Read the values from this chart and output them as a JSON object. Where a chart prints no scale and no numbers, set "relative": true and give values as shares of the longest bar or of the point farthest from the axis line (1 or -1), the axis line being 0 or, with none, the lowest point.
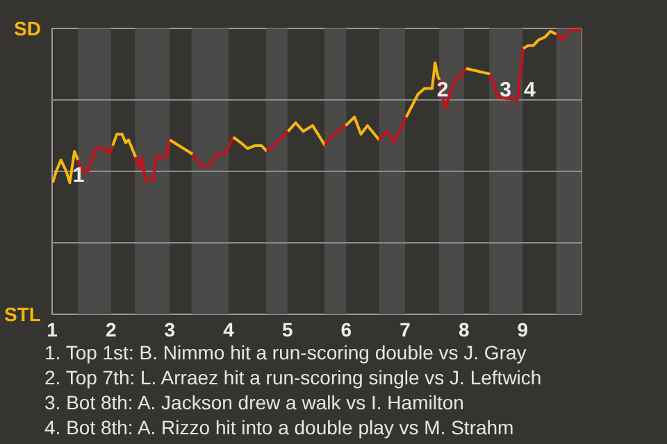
{
  "chart_data": {
    "type": "line",
    "relative": true,
    "xlim": [
      1,
      10
    ],
    "xticks": [
      1,
      2,
      3,
      4,
      5,
      6,
      7,
      8,
      9
    ],
    "tick_labels": "x",
    "series": [
      {
        "color": "#f5b70f",
        "x": [
          1.01,
          1.07,
          1.15,
          1.24,
          1.3,
          1.38,
          1.44
        ],
        "values": [
          0.46,
          0.5,
          0.54,
          0.5,
          0.46,
          0.57,
          0.54
        ]
      },
      {
        "color": "#c4111c",
        "x": [
          1.44,
          1.51,
          1.61,
          1.67,
          1.75,
          1.91,
          1.97,
          2.03
        ],
        "values": [
          0.54,
          0.5,
          0.5,
          0.54,
          0.58,
          0.58,
          0.56,
          0.59
        ]
      },
      {
        "color": "#f5b70f",
        "x": [
          2.03,
          2.1,
          2.19,
          2.25,
          2.3,
          2.42
        ],
        "values": [
          0.59,
          0.63,
          0.63,
          0.6,
          0.61,
          0.55
        ]
      },
      {
        "color": "#c4111c",
        "x": [
          2.42,
          2.48,
          2.53,
          2.58,
          2.72,
          2.77,
          2.94,
          3.0
        ],
        "values": [
          0.55,
          0.51,
          0.55,
          0.47,
          0.47,
          0.55,
          0.55,
          0.61
        ]
      },
      {
        "color": "#f5b70f",
        "x": [
          3.0,
          3.39
        ],
        "values": [
          0.61,
          0.56
        ]
      },
      {
        "color": "#c4111c",
        "x": [
          3.39,
          3.53,
          3.68,
          3.8,
          3.94,
          4.08
        ],
        "values": [
          0.56,
          0.52,
          0.52,
          0.56,
          0.56,
          0.62
        ]
      },
      {
        "color": "#f5b70f",
        "x": [
          4.08,
          4.21,
          4.32,
          4.45,
          4.56,
          4.65
        ],
        "values": [
          0.62,
          0.6,
          0.58,
          0.59,
          0.59,
          0.57
        ]
      },
      {
        "color": "#c4111c",
        "x": [
          4.65,
          5.01
        ],
        "values": [
          0.57,
          0.64
        ]
      },
      {
        "color": "#f5b70f",
        "x": [
          5.01,
          5.14,
          5.27,
          5.43,
          5.64
        ],
        "values": [
          0.64,
          0.67,
          0.64,
          0.66,
          0.59
        ]
      },
      {
        "color": "#c4111c",
        "x": [
          5.64,
          5.73,
          5.99
        ],
        "values": [
          0.59,
          0.62,
          0.66
        ]
      },
      {
        "color": "#f5b70f",
        "x": [
          5.99,
          6.14,
          6.25,
          6.36,
          6.56
        ],
        "values": [
          0.66,
          0.69,
          0.63,
          0.66,
          0.61
        ]
      },
      {
        "color": "#c4111c",
        "x": [
          6.56,
          6.69,
          6.81,
          7.02
        ],
        "values": [
          0.61,
          0.64,
          0.6,
          0.69
        ]
      },
      {
        "color": "#f5b70f",
        "x": [
          7.02,
          7.22,
          7.33,
          7.46,
          7.51,
          7.56,
          7.59
        ],
        "values": [
          0.69,
          0.77,
          0.79,
          0.79,
          0.88,
          0.83,
          0.82
        ]
      },
      {
        "color": "#c4111c",
        "x": [
          7.59,
          7.68,
          7.78,
          7.85,
          7.94,
          8.04
        ],
        "values": [
          0.82,
          0.72,
          0.78,
          0.82,
          0.83,
          0.86
        ]
      },
      {
        "color": "#f5b70f",
        "x": [
          8.04,
          8.45
        ],
        "values": [
          0.86,
          0.84
        ]
      },
      {
        "color": "#c4111c",
        "x": [
          8.45,
          8.58,
          8.91,
          9.01
        ],
        "values": [
          0.84,
          0.76,
          0.75,
          0.93
        ]
      },
      {
        "color": "#f5b70f",
        "x": [
          9.01,
          9.09,
          9.18,
          9.27,
          9.38,
          9.47,
          9.57
        ],
        "values": [
          0.93,
          0.94,
          0.94,
          0.96,
          0.97,
          0.99,
          0.98
        ]
      },
      {
        "color": "#c4111c",
        "x": [
          9.57,
          9.67,
          9.82,
          9.94,
          10.0
        ],
        "values": [
          0.98,
          0.96,
          1.0,
          0.99,
          1.0
        ]
      }
    ],
    "ref_lines": [
      {
        "axis": "y",
        "value": 0.25,
        "color": "#8c8c8c"
      },
      {
        "axis": "y",
        "value": 0.5,
        "color": "#8c8c8c"
      },
      {
        "axis": "y",
        "value": 0.75,
        "color": "#8c8c8c"
      }
    ],
    "bands": [
      {
        "axis": "x",
        "from": 1.44,
        "to": 2.0,
        "color": "#4b4a48"
      },
      {
        "axis": "x",
        "from": 2.41,
        "to": 3.0,
        "color": "#4b4a48"
      },
      {
        "axis": "x",
        "from": 3.37,
        "to": 4.0,
        "color": "#4b4a48"
      },
      {
        "axis": "x",
        "from": 4.64,
        "to": 5.0,
        "color": "#4b4a48"
      },
      {
        "axis": "x",
        "from": 5.63,
        "to": 6.0,
        "color": "#4b4a48"
      },
      {
        "axis": "x",
        "from": 6.56,
        "to": 7.0,
        "color": "#4b4a48"
      },
      {
        "axis": "x",
        "from": 7.58,
        "to": 8.0,
        "color": "#4b4a48"
      },
      {
        "axis": "x",
        "from": 8.43,
        "to": 9.0,
        "color": "#4b4a48"
      },
      {
        "axis": "x",
        "from": 9.57,
        "to": 10,
        "color": "#4b4a48"
      }
    ],
    "annotations": [
      "SD",
      "STL",
      {
        "text": "1",
        "x": 1.26,
        "y": 0.49
      },
      {
        "text": "2",
        "x": 7.45,
        "y": 0.79
      },
      {
        "text": "3",
        "x": 8.52,
        "y": 0.79
      },
      {
        "text": "4",
        "x": 8.93,
        "y": 0.79
      },
      "1. Top 1st: B. Nimmo hit a run-scoring double vs J. Gray",
      "2. Top 7th: L. Arraez hit a run-scoring single vs J. Leftwich",
      "3. Bot 8th: A. Jackson drew a walk vs I. Hamilton",
      "4. Bot 8th: A. Rizzo hit into a double play vs M. Strahm"
    ]
  }
}
